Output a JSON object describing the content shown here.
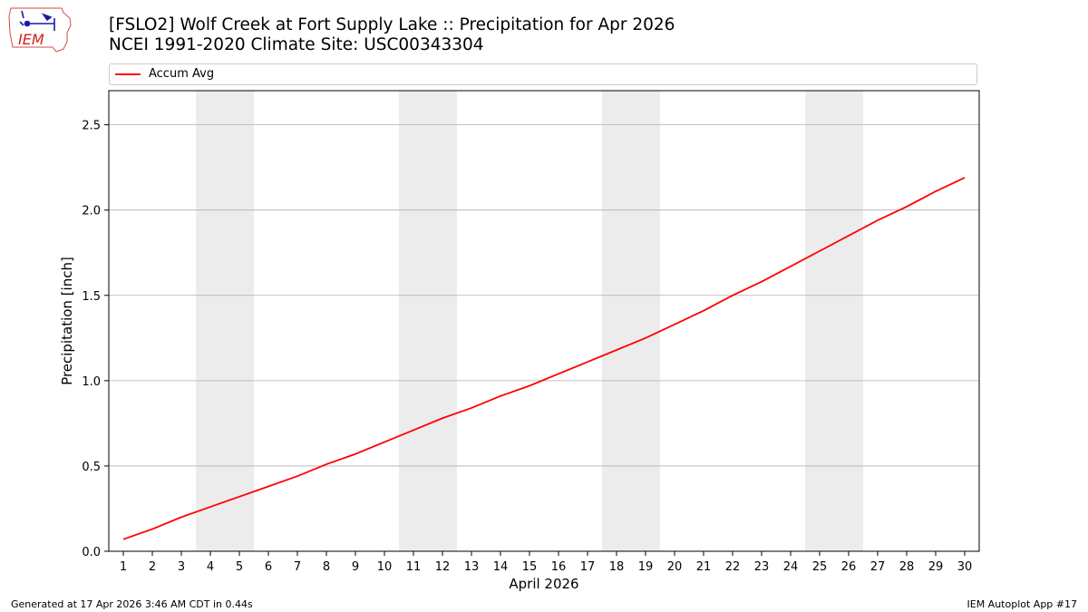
{
  "header": {
    "title": "[FSLO2] Wolf Creek at Fort Supply Lake :: Precipitation for Apr 2026",
    "subtitle": "NCEI 1991-2020 Climate Site: USC00343304",
    "logo_text": "IEM"
  },
  "footer": {
    "left": "Generated at 17 Apr 2026 3:46 AM CDT in 0.44s",
    "right": "IEM Autoplot App #17"
  },
  "colors": {
    "line": "#ff0000",
    "weekend_band": "#ececec",
    "grid": "#b0b0b0"
  },
  "chart_data": {
    "type": "line",
    "title": "[FSLO2] Wolf Creek at Fort Supply Lake :: Precipitation for Apr 2026",
    "xlabel": "April 2026",
    "ylabel": "Precipitation [inch]",
    "xlim": [
      0.5,
      30.5
    ],
    "ylim": [
      0,
      2.7
    ],
    "x_ticks": [
      1,
      2,
      3,
      4,
      5,
      6,
      7,
      8,
      9,
      10,
      11,
      12,
      13,
      14,
      15,
      16,
      17,
      18,
      19,
      20,
      21,
      22,
      23,
      24,
      25,
      26,
      27,
      28,
      29,
      30
    ],
    "y_ticks": [
      0.0,
      0.5,
      1.0,
      1.5,
      2.0,
      2.5
    ],
    "y_tick_labels": [
      "0.0",
      "0.5",
      "1.0",
      "1.5",
      "2.0",
      "2.5"
    ],
    "grid": "horizontal",
    "legend_position": "top",
    "weekend_bands": [
      [
        3.5,
        5.5
      ],
      [
        10.5,
        12.5
      ],
      [
        17.5,
        19.5
      ],
      [
        24.5,
        26.5
      ]
    ],
    "series": [
      {
        "name": "Accum Avg",
        "x": [
          1,
          2,
          3,
          4,
          5,
          6,
          7,
          8,
          9,
          10,
          11,
          12,
          13,
          14,
          15,
          16,
          17,
          18,
          19,
          20,
          21,
          22,
          23,
          24,
          25,
          26,
          27,
          28,
          29,
          30
        ],
        "values": [
          0.07,
          0.13,
          0.2,
          0.26,
          0.32,
          0.38,
          0.44,
          0.51,
          0.57,
          0.64,
          0.71,
          0.78,
          0.84,
          0.91,
          0.97,
          1.04,
          1.11,
          1.18,
          1.25,
          1.33,
          1.41,
          1.5,
          1.58,
          1.67,
          1.76,
          1.85,
          1.94,
          2.02,
          2.11,
          2.19
        ]
      }
    ]
  }
}
